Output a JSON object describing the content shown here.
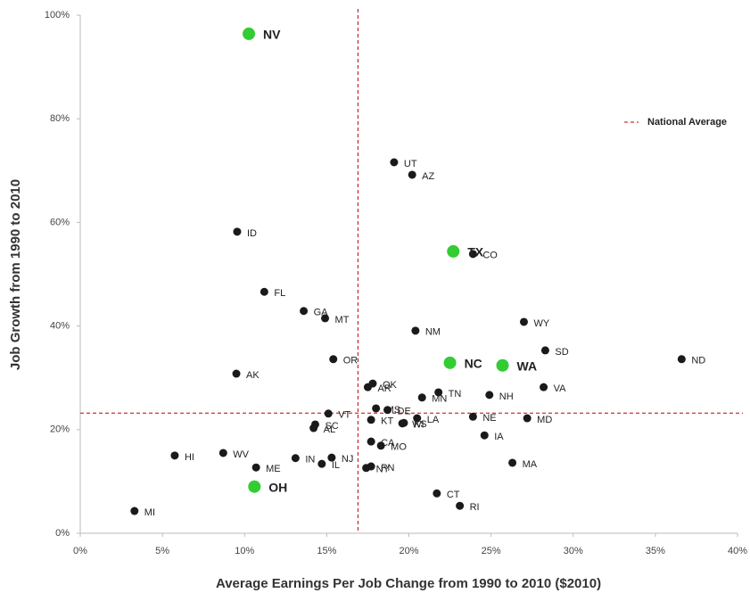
{
  "chart_data": {
    "type": "scatter",
    "x_label": "Average Earnings Per Job Change from 1990 to 2010 ($2010)",
    "y_label": "Job Growth from 1990 to 2010",
    "xlim": [
      0,
      40
    ],
    "ylim": [
      0,
      100
    ],
    "xticks": [
      {
        "value": 0,
        "label": "0%"
      },
      {
        "value": 5,
        "label": "5%"
      },
      {
        "value": 10,
        "label": "10%"
      },
      {
        "value": 15,
        "label": "15%"
      },
      {
        "value": 20,
        "label": "20%"
      },
      {
        "value": 25,
        "label": "25%"
      },
      {
        "value": 30,
        "label": "30%"
      },
      {
        "value": 35,
        "label": "35%"
      },
      {
        "value": 40,
        "label": "40%"
      }
    ],
    "yticks": [
      {
        "value": 0,
        "label": "0%"
      },
      {
        "value": 20,
        "label": "20%"
      },
      {
        "value": 40,
        "label": "40%"
      },
      {
        "value": 60,
        "label": "60%"
      },
      {
        "value": 80,
        "label": "80%"
      },
      {
        "value": 100,
        "label": "100%"
      }
    ],
    "series": [
      {
        "color": "#1a1a1a",
        "labels": [
          "UT",
          "AZ",
          "ID",
          "CO",
          "FL",
          "GA",
          "MT",
          "WY",
          "NM",
          "SD",
          "ND",
          "OR",
          "AK",
          "OK",
          "AR",
          "MN",
          "TN",
          "VA",
          "NH",
          "MS",
          "DE",
          "VT",
          "SC",
          "AL",
          "LA",
          "KT",
          "KS",
          "WI",
          "NE",
          "MD",
          "IA",
          "CA",
          "MO",
          "IN",
          "NJ",
          "WV",
          "HI",
          "ME",
          "IL",
          "PN",
          "NY",
          "MA",
          "CT",
          "RI",
          "MI"
        ],
        "x": [
          19.1,
          20.2,
          9.55,
          23.9,
          11.2,
          13.6,
          14.9,
          27.0,
          20.4,
          28.3,
          36.6,
          15.4,
          9.5,
          17.8,
          17.5,
          20.8,
          21.8,
          28.2,
          24.9,
          18.0,
          18.7,
          15.1,
          14.3,
          14.2,
          20.5,
          17.7,
          19.7,
          19.6,
          23.9,
          27.2,
          24.6,
          17.7,
          18.3,
          13.1,
          15.3,
          8.7,
          5.75,
          10.7,
          14.7,
          17.7,
          17.4,
          26.3,
          21.7,
          23.1,
          3.3
        ],
        "values": [
          71.6,
          69.2,
          58.2,
          53.9,
          46.6,
          42.9,
          41.5,
          40.8,
          39.1,
          35.3,
          33.6,
          33.6,
          30.8,
          28.9,
          28.2,
          26.2,
          27.2,
          28.2,
          26.7,
          24.1,
          23.8,
          23.1,
          21.0,
          20.3,
          22.2,
          21.9,
          21.3,
          21.2,
          22.5,
          22.2,
          18.9,
          17.7,
          16.9,
          14.5,
          14.6,
          15.5,
          15.0,
          12.7,
          13.4,
          12.9,
          12.6,
          13.6,
          7.7,
          5.3,
          4.3
        ],
        "label_colors": null
      },
      {
        "color": "#33cc33",
        "labels": [
          "NV",
          "TX",
          "NC",
          "WA",
          "OH"
        ],
        "x": [
          10.26,
          22.7,
          22.5,
          25.7,
          10.6
        ],
        "values": [
          96.4,
          54.4,
          32.9,
          32.4,
          9.0
        ],
        "label_colors": [
          "#1a1a1a",
          "#33bb33",
          "#1a1a1a",
          "#33bb33",
          "#1a1a1a"
        ]
      }
    ],
    "reference": {
      "name": "National Average",
      "x": 16.9,
      "y": 23.2,
      "color": "#c00000"
    }
  }
}
